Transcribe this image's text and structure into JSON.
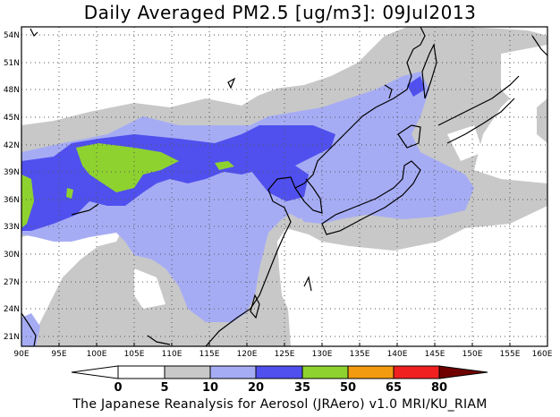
{
  "title": "Daily Averaged PM2.5 [ug/m3]: 09Jul2013",
  "footer": "The Japanese Reanalysis for Aerosol (JRAero) v1.0 MRI/KU_RIAM",
  "map": {
    "lon_range": [
      90,
      160
    ],
    "lat_range": [
      20,
      55
    ],
    "lon_ticks": [
      "90E",
      "95E",
      "100E",
      "105E",
      "110E",
      "115E",
      "120E",
      "125E",
      "130E",
      "135E",
      "140E",
      "145E",
      "150E",
      "155E",
      "160E"
    ],
    "lat_ticks": [
      "21N",
      "24N",
      "27N",
      "30N",
      "33N",
      "36N",
      "39N",
      "42N",
      "45N",
      "48N",
      "51N",
      "54N"
    ],
    "grid": "dotted"
  },
  "colorbar": {
    "levels": [
      "0",
      "5",
      "10",
      "20",
      "35",
      "50",
      "65",
      "80"
    ],
    "colors": [
      "#ffffff",
      "#c8c8c8",
      "#a6acf4",
      "#5050ee",
      "#8ed230",
      "#f29a10",
      "#f02020",
      "#700000"
    ]
  }
}
